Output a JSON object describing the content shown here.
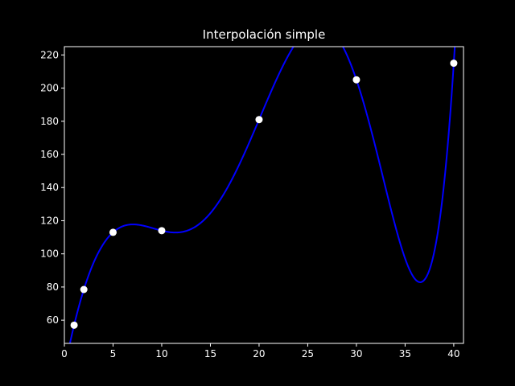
{
  "chart_data": {
    "type": "scatter",
    "title": "Interpolación simple",
    "xlabel": "",
    "ylabel": "",
    "xlim": [
      0,
      41
    ],
    "ylim": [
      46,
      225
    ],
    "x_ticks": [
      0,
      5,
      10,
      15,
      20,
      25,
      30,
      35,
      40
    ],
    "y_ticks": [
      60,
      80,
      100,
      120,
      140,
      160,
      180,
      200,
      220
    ],
    "grid": false,
    "legend": "none",
    "points": [
      {
        "x": 1,
        "y": 57
      },
      {
        "x": 2,
        "y": 78.5
      },
      {
        "x": 5,
        "y": 113
      },
      {
        "x": 10,
        "y": 114
      },
      {
        "x": 20,
        "y": 181
      },
      {
        "x": 30,
        "y": 205
      },
      {
        "x": 40,
        "y": 215
      }
    ],
    "interpolation_curve": {
      "method": "polynomial",
      "color": "#0000ff"
    },
    "colors": {
      "background": "#000000",
      "foreground": "#ffffff",
      "points": "#ffffff",
      "curve": "#0000ff"
    }
  }
}
